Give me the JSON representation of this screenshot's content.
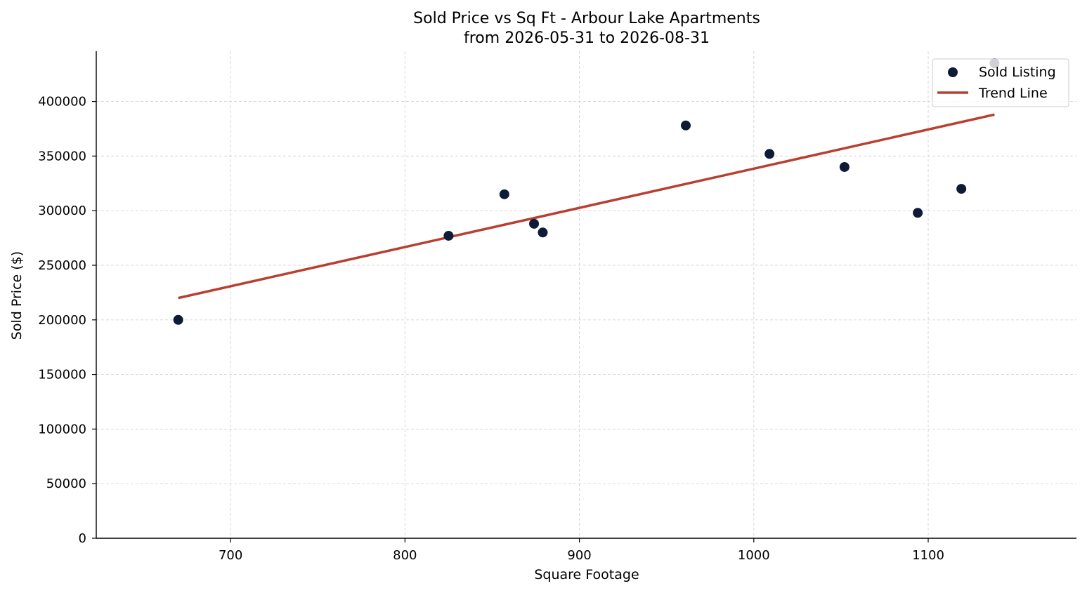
{
  "chart_data": {
    "type": "scatter",
    "title": "Sold Price vs Sq Ft - Arbour Lake Apartments",
    "subtitle": "from 2026-05-31 to 2026-08-31",
    "xlabel": "Square Footage",
    "ylabel": "Sold Price ($)",
    "xlim": [
      623,
      1185
    ],
    "ylim": [
      0,
      446000
    ],
    "xticks": [
      700,
      800,
      900,
      1000,
      1100
    ],
    "yticks": [
      0,
      50000,
      100000,
      150000,
      200000,
      250000,
      300000,
      350000,
      400000
    ],
    "grid": true,
    "legend_position": "top-right",
    "series": [
      {
        "name": "Sold Listing",
        "kind": "scatter",
        "color": "#0d1b36",
        "points": [
          {
            "x": 670,
            "y": 200000
          },
          {
            "x": 825,
            "y": 277000
          },
          {
            "x": 857,
            "y": 315000
          },
          {
            "x": 874,
            "y": 288000
          },
          {
            "x": 879,
            "y": 280000
          },
          {
            "x": 961,
            "y": 378000
          },
          {
            "x": 1009,
            "y": 352000
          },
          {
            "x": 1052,
            "y": 340000
          },
          {
            "x": 1094,
            "y": 298000
          },
          {
            "x": 1119,
            "y": 320000
          },
          {
            "x": 1138,
            "y": 435000
          }
        ]
      },
      {
        "name": "Trend Line",
        "kind": "line",
        "color": "#b84030",
        "points": [
          {
            "x": 670,
            "y": 220000
          },
          {
            "x": 1138,
            "y": 388000
          }
        ]
      }
    ]
  }
}
